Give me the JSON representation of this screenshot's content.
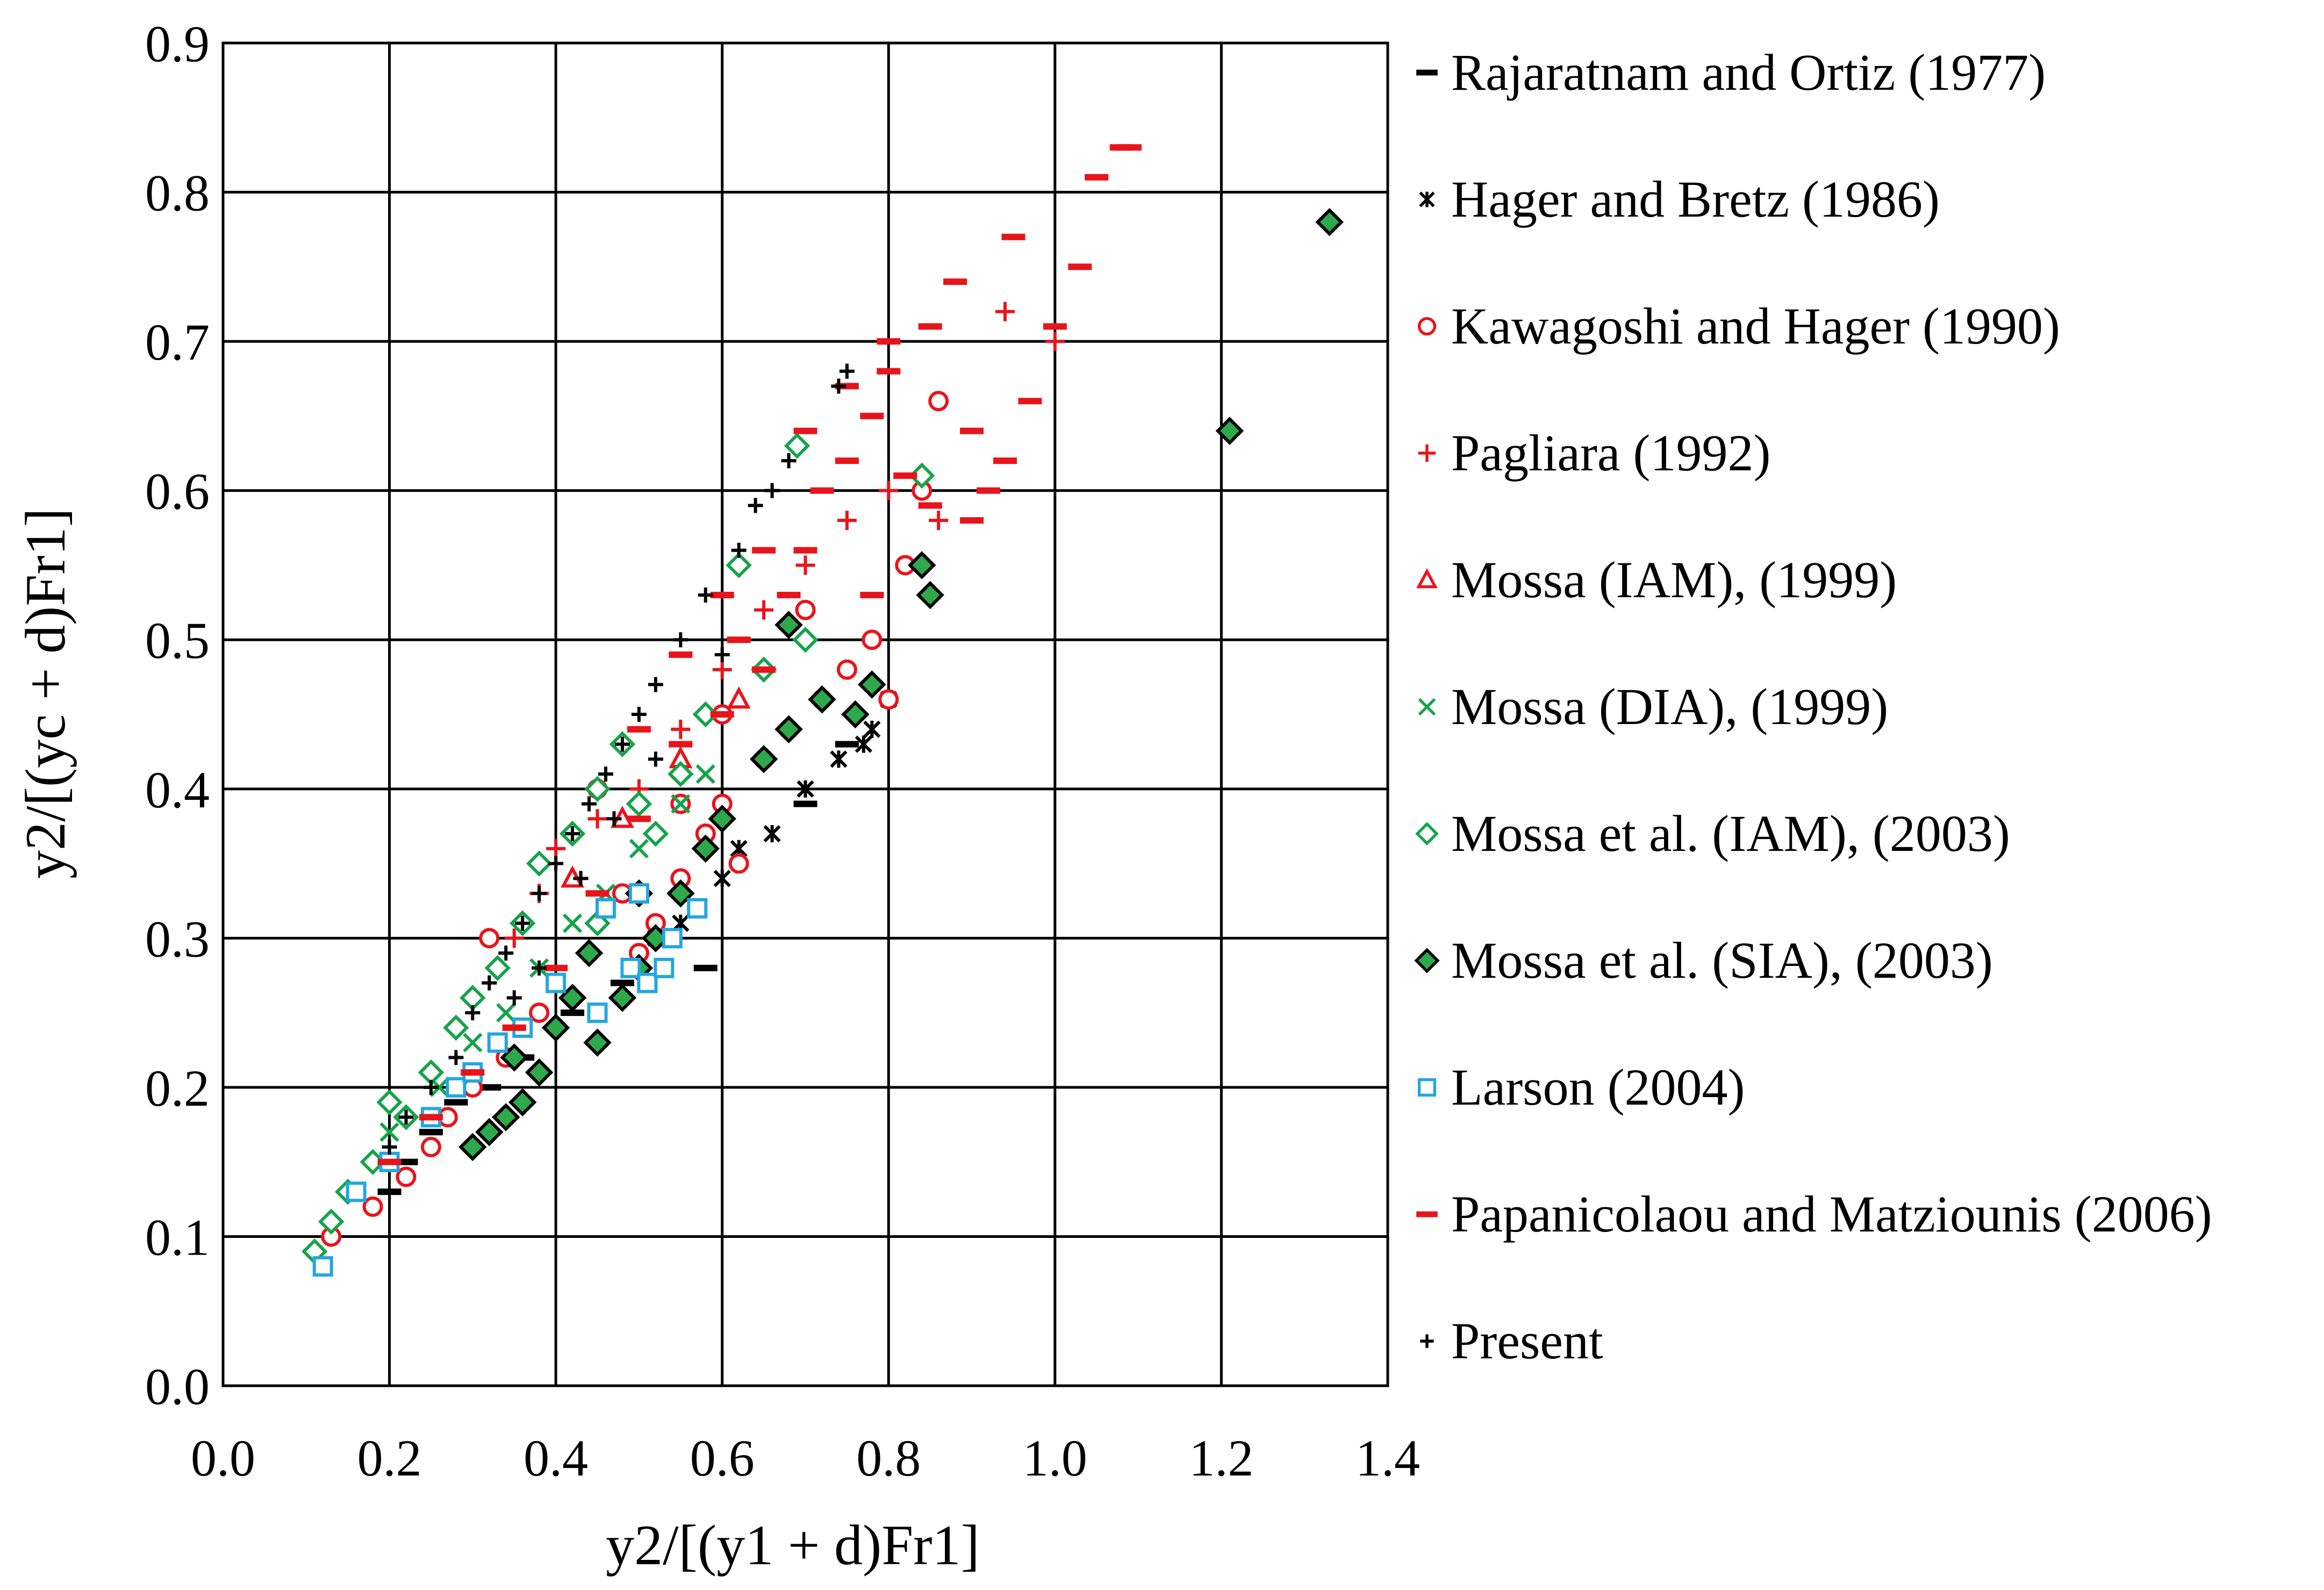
{
  "chart_data": {
    "type": "scatter",
    "title": "",
    "xlabel": "y2/[(y1 + d)Fr1]",
    "ylabel": "y2/[(yc + d)Fr1]",
    "xlim": [
      0.0,
      1.4
    ],
    "ylim": [
      0.0,
      0.9
    ],
    "grid": true,
    "legend_position": "right",
    "x_ticks": [
      "0.0",
      "0.2",
      "0.4",
      "0.6",
      "0.8",
      "1.0",
      "1.2",
      "1.4"
    ],
    "y_ticks": [
      "0.0",
      "0.1",
      "0.2",
      "0.3",
      "0.4",
      "0.5",
      "0.6",
      "0.7",
      "0.8",
      "0.9"
    ],
    "series": [
      {
        "name": "Rajaratnam and Ortiz (1977)",
        "marker": "dash",
        "color": "#000000",
        "points": [
          [
            0.2,
            0.13
          ],
          [
            0.22,
            0.15
          ],
          [
            0.25,
            0.17
          ],
          [
            0.28,
            0.19
          ],
          [
            0.32,
            0.2
          ],
          [
            0.36,
            0.22
          ],
          [
            0.42,
            0.25
          ],
          [
            0.48,
            0.27
          ],
          [
            0.58,
            0.28
          ],
          [
            0.7,
            0.39
          ],
          [
            0.75,
            0.43
          ]
        ]
      },
      {
        "name": "Hager and Bretz (1986)",
        "marker": "star",
        "color": "#000000",
        "points": [
          [
            0.55,
            0.31
          ],
          [
            0.6,
            0.34
          ],
          [
            0.62,
            0.36
          ],
          [
            0.66,
            0.37
          ],
          [
            0.7,
            0.4
          ],
          [
            0.74,
            0.42
          ],
          [
            0.77,
            0.43
          ],
          [
            0.8,
            0.46
          ],
          [
            0.78,
            0.44
          ],
          [
            0.52,
            0.3
          ]
        ]
      },
      {
        "name": "Kawagoshi and Hager (1990)",
        "marker": "circle",
        "color": "#e8141b",
        "points": [
          [
            0.13,
            0.1
          ],
          [
            0.18,
            0.12
          ],
          [
            0.22,
            0.14
          ],
          [
            0.25,
            0.16
          ],
          [
            0.27,
            0.18
          ],
          [
            0.3,
            0.2
          ],
          [
            0.32,
            0.3
          ],
          [
            0.34,
            0.22
          ],
          [
            0.38,
            0.25
          ],
          [
            0.4,
            0.27
          ],
          [
            0.45,
            0.4
          ],
          [
            0.48,
            0.33
          ],
          [
            0.5,
            0.29
          ],
          [
            0.52,
            0.31
          ],
          [
            0.55,
            0.34
          ],
          [
            0.58,
            0.37
          ],
          [
            0.6,
            0.39
          ],
          [
            0.62,
            0.35
          ],
          [
            0.65,
            0.42
          ],
          [
            0.68,
            0.44
          ],
          [
            0.72,
            0.46
          ],
          [
            0.75,
            0.48
          ],
          [
            0.78,
            0.5
          ],
          [
            0.8,
            0.46
          ],
          [
            0.82,
            0.55
          ],
          [
            0.84,
            0.6
          ],
          [
            0.86,
            0.66
          ],
          [
            0.7,
            0.52
          ],
          [
            0.6,
            0.45
          ],
          [
            0.55,
            0.39
          ]
        ]
      },
      {
        "name": "Pagliara (1992)",
        "marker": "plus",
        "color": "#e8141b",
        "points": [
          [
            0.35,
            0.3
          ],
          [
            0.38,
            0.33
          ],
          [
            0.4,
            0.36
          ],
          [
            0.45,
            0.38
          ],
          [
            0.5,
            0.4
          ],
          [
            0.55,
            0.44
          ],
          [
            0.6,
            0.48
          ],
          [
            0.65,
            0.52
          ],
          [
            0.7,
            0.55
          ],
          [
            0.75,
            0.58
          ],
          [
            0.8,
            0.6
          ],
          [
            0.86,
            0.58
          ],
          [
            0.94,
            0.72
          ],
          [
            1.0,
            0.7
          ]
        ]
      },
      {
        "name": "Mossa (IAM), (1999)",
        "marker": "triangle",
        "color": "#e8141b",
        "points": [
          [
            0.42,
            0.34
          ],
          [
            0.48,
            0.38
          ],
          [
            0.55,
            0.42
          ],
          [
            0.62,
            0.46
          ]
        ]
      },
      {
        "name": "Mossa (DIA), (1999)",
        "marker": "x",
        "color": "#16a34a",
        "points": [
          [
            0.2,
            0.17
          ],
          [
            0.26,
            0.2
          ],
          [
            0.3,
            0.23
          ],
          [
            0.34,
            0.25
          ],
          [
            0.38,
            0.28
          ],
          [
            0.42,
            0.31
          ],
          [
            0.46,
            0.33
          ],
          [
            0.5,
            0.36
          ],
          [
            0.55,
            0.39
          ],
          [
            0.58,
            0.41
          ]
        ]
      },
      {
        "name": "Mossa et al. (IAM), (2003)",
        "marker": "diamond-open",
        "color": "#16a34a",
        "points": [
          [
            0.11,
            0.09
          ],
          [
            0.13,
            0.11
          ],
          [
            0.15,
            0.13
          ],
          [
            0.18,
            0.15
          ],
          [
            0.2,
            0.19
          ],
          [
            0.22,
            0.18
          ],
          [
            0.25,
            0.21
          ],
          [
            0.28,
            0.24
          ],
          [
            0.3,
            0.26
          ],
          [
            0.33,
            0.28
          ],
          [
            0.36,
            0.31
          ],
          [
            0.38,
            0.35
          ],
          [
            0.42,
            0.37
          ],
          [
            0.45,
            0.4
          ],
          [
            0.48,
            0.43
          ],
          [
            0.5,
            0.39
          ],
          [
            0.55,
            0.41
          ],
          [
            0.58,
            0.45
          ],
          [
            0.62,
            0.55
          ],
          [
            0.65,
            0.48
          ],
          [
            0.69,
            0.63
          ],
          [
            0.7,
            0.5
          ],
          [
            0.84,
            0.61
          ],
          [
            0.45,
            0.31
          ],
          [
            0.52,
            0.37
          ]
        ]
      },
      {
        "name": "Mossa et al. (SIA), (2003)",
        "marker": "diamond-filled",
        "color": "#2ea84a",
        "points": [
          [
            0.3,
            0.16
          ],
          [
            0.32,
            0.17
          ],
          [
            0.34,
            0.18
          ],
          [
            0.36,
            0.19
          ],
          [
            0.38,
            0.21
          ],
          [
            0.35,
            0.22
          ],
          [
            0.4,
            0.24
          ],
          [
            0.42,
            0.26
          ],
          [
            0.45,
            0.23
          ],
          [
            0.48,
            0.26
          ],
          [
            0.5,
            0.28
          ],
          [
            0.52,
            0.3
          ],
          [
            0.55,
            0.33
          ],
          [
            0.58,
            0.36
          ],
          [
            0.6,
            0.38
          ],
          [
            0.65,
            0.42
          ],
          [
            0.68,
            0.44
          ],
          [
            0.72,
            0.46
          ],
          [
            0.76,
            0.45
          ],
          [
            0.78,
            0.47
          ],
          [
            0.84,
            0.55
          ],
          [
            0.85,
            0.53
          ],
          [
            0.68,
            0.51
          ],
          [
            0.44,
            0.29
          ],
          [
            0.5,
            0.33
          ],
          [
            1.21,
            0.64
          ],
          [
            1.33,
            0.78
          ]
        ]
      },
      {
        "name": "Larson (2004)",
        "marker": "square",
        "color": "#22a7e0",
        "points": [
          [
            0.12,
            0.08
          ],
          [
            0.16,
            0.13
          ],
          [
            0.2,
            0.15
          ],
          [
            0.25,
            0.18
          ],
          [
            0.28,
            0.2
          ],
          [
            0.3,
            0.21
          ],
          [
            0.33,
            0.23
          ],
          [
            0.36,
            0.24
          ],
          [
            0.4,
            0.27
          ],
          [
            0.45,
            0.25
          ],
          [
            0.46,
            0.32
          ],
          [
            0.49,
            0.28
          ],
          [
            0.5,
            0.33
          ],
          [
            0.51,
            0.27
          ],
          [
            0.53,
            0.28
          ],
          [
            0.54,
            0.3
          ],
          [
            0.57,
            0.32
          ]
        ]
      },
      {
        "name": "Papanicolaou and Matziounis (2006)",
        "marker": "dash",
        "color": "#e8141b",
        "points": [
          [
            0.2,
            0.15
          ],
          [
            0.25,
            0.18
          ],
          [
            0.3,
            0.21
          ],
          [
            0.35,
            0.24
          ],
          [
            0.4,
            0.28
          ],
          [
            0.45,
            0.33
          ],
          [
            0.5,
            0.38
          ],
          [
            0.55,
            0.43
          ],
          [
            0.6,
            0.45
          ],
          [
            0.62,
            0.5
          ],
          [
            0.65,
            0.48
          ],
          [
            0.68,
            0.53
          ],
          [
            0.7,
            0.56
          ],
          [
            0.72,
            0.6
          ],
          [
            0.75,
            0.62
          ],
          [
            0.78,
            0.65
          ],
          [
            0.8,
            0.68
          ],
          [
            0.82,
            0.61
          ],
          [
            0.85,
            0.59
          ],
          [
            0.88,
            0.74
          ],
          [
            0.9,
            0.64
          ],
          [
            0.92,
            0.6
          ],
          [
            0.95,
            0.77
          ],
          [
            0.97,
            0.66
          ],
          [
            1.0,
            0.71
          ],
          [
            1.03,
            0.75
          ],
          [
            1.05,
            0.81
          ],
          [
            1.08,
            0.83
          ],
          [
            1.09,
            0.83
          ],
          [
            0.75,
            0.67
          ],
          [
            0.8,
            0.7
          ],
          [
            0.85,
            0.71
          ],
          [
            0.7,
            0.64
          ],
          [
            0.65,
            0.56
          ],
          [
            0.6,
            0.53
          ],
          [
            0.55,
            0.49
          ],
          [
            0.5,
            0.44
          ],
          [
            0.94,
            0.62
          ],
          [
            0.9,
            0.58
          ],
          [
            0.78,
            0.53
          ]
        ]
      },
      {
        "name": "Present",
        "marker": "plus-small",
        "color": "#000000",
        "points": [
          [
            0.2,
            0.16
          ],
          [
            0.22,
            0.18
          ],
          [
            0.25,
            0.2
          ],
          [
            0.28,
            0.22
          ],
          [
            0.3,
            0.25
          ],
          [
            0.32,
            0.27
          ],
          [
            0.34,
            0.29
          ],
          [
            0.36,
            0.31
          ],
          [
            0.38,
            0.33
          ],
          [
            0.4,
            0.35
          ],
          [
            0.42,
            0.37
          ],
          [
            0.44,
            0.39
          ],
          [
            0.46,
            0.41
          ],
          [
            0.48,
            0.43
          ],
          [
            0.5,
            0.45
          ],
          [
            0.52,
            0.47
          ],
          [
            0.55,
            0.5
          ],
          [
            0.58,
            0.53
          ],
          [
            0.62,
            0.56
          ],
          [
            0.64,
            0.59
          ],
          [
            0.66,
            0.6
          ],
          [
            0.68,
            0.62
          ],
          [
            0.74,
            0.67
          ],
          [
            0.75,
            0.68
          ],
          [
            0.38,
            0.28
          ],
          [
            0.43,
            0.34
          ],
          [
            0.47,
            0.38
          ],
          [
            0.52,
            0.42
          ],
          [
            0.6,
            0.49
          ],
          [
            0.35,
            0.26
          ]
        ]
      }
    ]
  }
}
